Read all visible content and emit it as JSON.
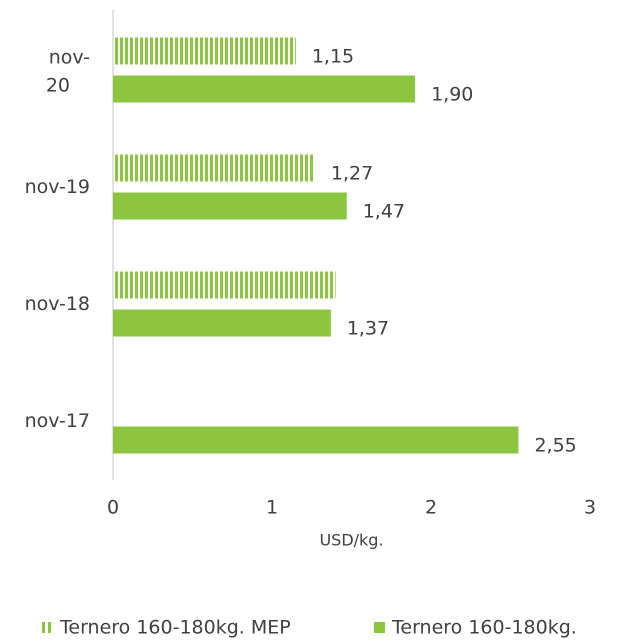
{
  "chart_data": {
    "type": "bar",
    "orientation": "horizontal",
    "categories": [
      "nov-20",
      "nov-19",
      "nov-18",
      "nov-17"
    ],
    "series": [
      {
        "name": "Ternero 160-180kg. MEP",
        "color": "#8cc540",
        "pattern": "vertical-stripes",
        "values": [
          1.15,
          1.27,
          1.4,
          null
        ],
        "value_labels": [
          "1,15",
          "1,27",
          null,
          null
        ]
      },
      {
        "name": "Ternero 160-180kg.",
        "color": "#8cc540",
        "values": [
          1.9,
          1.47,
          1.37,
          2.55
        ],
        "value_labels": [
          "1,90",
          "1,47",
          "1,37",
          "2,55"
        ]
      }
    ],
    "xlabel": "USD/kg.",
    "xlim": [
      0,
      3
    ],
    "xticks": [
      0,
      1,
      2,
      3
    ],
    "legend": "bottom"
  }
}
